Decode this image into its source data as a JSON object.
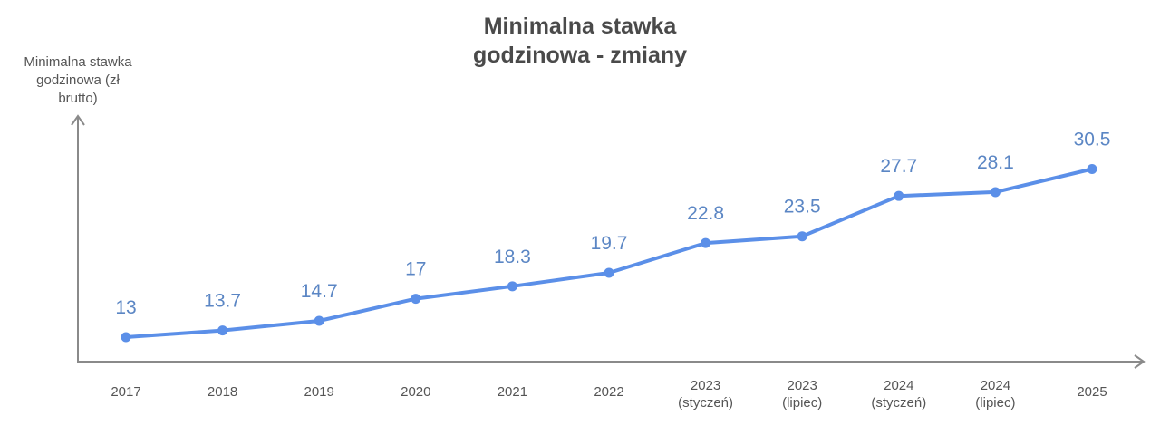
{
  "chart_data": {
    "type": "line",
    "title": "Minimalna stawka godzinowa - zmiany",
    "title_lines": [
      "Minimalna stawka",
      "godzinowa - zmiany"
    ],
    "xlabel": "",
    "ylabel": "Minimalna stawka godzinowa (zł brutto)",
    "ylabel_lines": [
      "Minimalna stawka",
      "godzinowa (zł",
      "brutto)"
    ],
    "categories": [
      "2017",
      "2018",
      "2019",
      "2020",
      "2021",
      "2022",
      "2023 (styczeń)",
      "2023 (lipiec)",
      "2024 (styczeń)",
      "2024 (lipiec)",
      "2025"
    ],
    "category_lines": [
      [
        "2017"
      ],
      [
        "2018"
      ],
      [
        "2019"
      ],
      [
        "2020"
      ],
      [
        "2021"
      ],
      [
        "2022"
      ],
      [
        "2023",
        "(styczeń)"
      ],
      [
        "2023",
        "(lipiec)"
      ],
      [
        "2024",
        "(styczeń)"
      ],
      [
        "2024",
        "(lipiec)"
      ],
      [
        "2025"
      ]
    ],
    "series": [
      {
        "name": "Minimalna stawka godzinowa",
        "values": [
          13,
          13.7,
          14.7,
          17,
          18.3,
          19.7,
          22.8,
          23.5,
          27.7,
          28.1,
          30.5
        ]
      }
    ],
    "value_labels": [
      "13",
      "13.7",
      "14.7",
      "17",
      "18.3",
      "19.7",
      "22.8",
      "23.5",
      "27.7",
      "28.1",
      "30.5"
    ],
    "grid": false,
    "legend": "none",
    "colors": {
      "line": "#5b8fe8",
      "label": "#5b86c4",
      "axis": "#8a8a8a",
      "text": "#555555",
      "title": "#4a4a4a"
    }
  }
}
